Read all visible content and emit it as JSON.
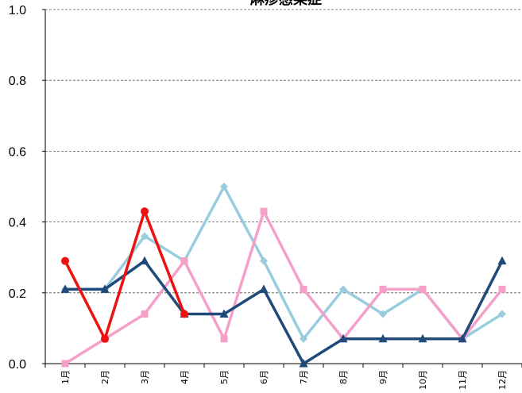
{
  "chart_data": {
    "type": "line",
    "title": "麻疹感染症",
    "xlabel": "",
    "ylabel": "",
    "categories": [
      "1月",
      "2月",
      "3月",
      "4月",
      "5月",
      "6月",
      "7月",
      "8月",
      "9月",
      "10月",
      "11月",
      "12月"
    ],
    "ylim": [
      0,
      1.0
    ],
    "yticks": [
      "0.0",
      "0.2",
      "0.4",
      "0.6",
      "0.8",
      "1.0"
    ],
    "grid": "horizontal-dashed",
    "legend": "none",
    "series": [
      {
        "color": "#99ccdd",
        "marker": "diamond",
        "values": [
          0.21,
          0.21,
          0.36,
          0.29,
          0.5,
          0.29,
          0.07,
          0.21,
          0.14,
          0.21,
          0.07,
          0.14
        ]
      },
      {
        "color": "#f4a0c8",
        "marker": "square",
        "values": [
          0.0,
          0.07,
          0.14,
          0.29,
          0.07,
          0.43,
          0.21,
          0.07,
          0.21,
          0.21,
          0.07,
          0.21
        ]
      },
      {
        "color": "#1f4a7a",
        "marker": "triangle",
        "values": [
          0.21,
          0.21,
          0.29,
          0.14,
          0.14,
          0.21,
          0.0,
          0.07,
          0.07,
          0.07,
          0.07,
          0.29
        ]
      },
      {
        "color": "#ee1111",
        "marker": "circle",
        "values": [
          0.29,
          0.07,
          0.43,
          0.14,
          null,
          null,
          null,
          null,
          null,
          null,
          null,
          null
        ]
      }
    ]
  }
}
